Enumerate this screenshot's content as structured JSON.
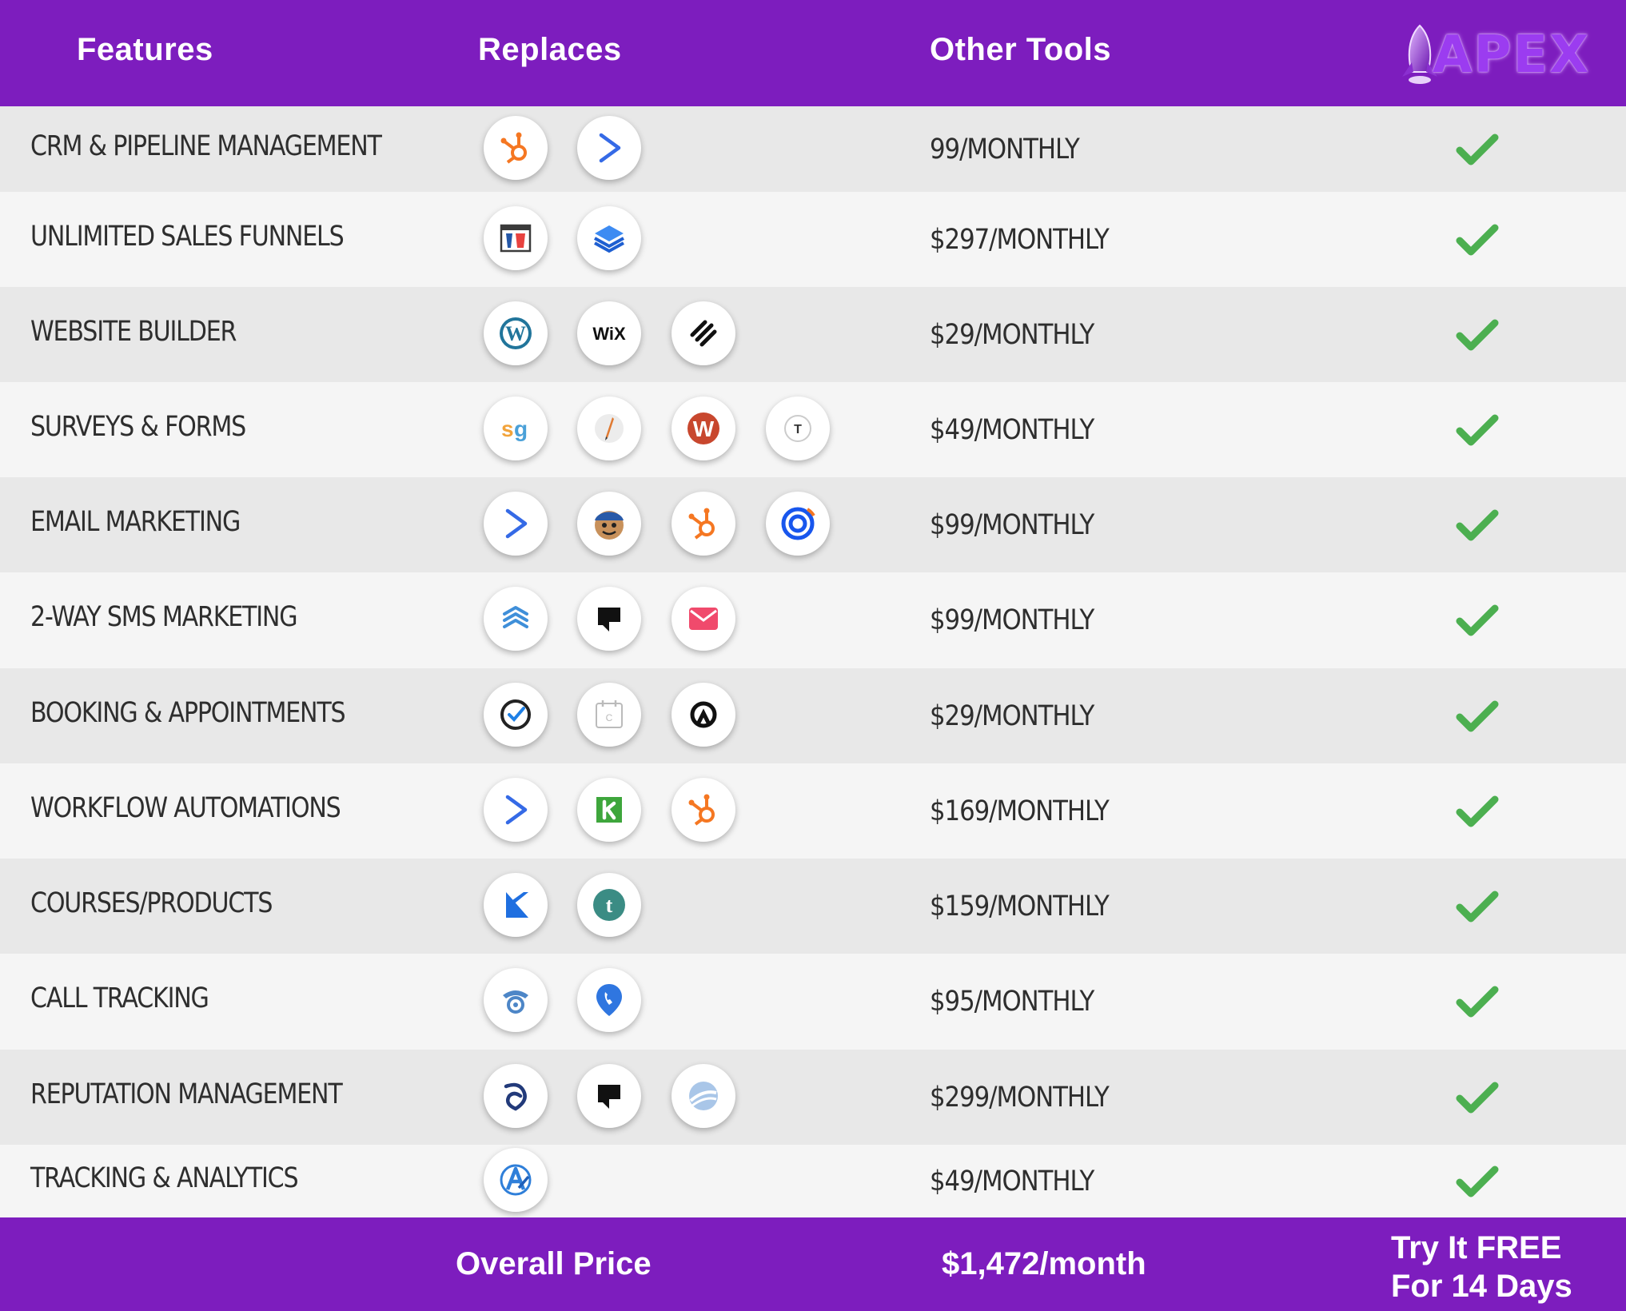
{
  "header": {
    "features_label": "Features",
    "replaces_label": "Replaces",
    "other_tools_label": "Other Tools",
    "logo_text": "APEX"
  },
  "rows": [
    {
      "feature": "CRM & PIPELINE MANAGEMENT",
      "price": "99/MONTHLY",
      "icons": [
        "hubspot-icon",
        "activecampaign-icon"
      ],
      "included": true
    },
    {
      "feature": "UNLIMITED SALES FUNNELS",
      "price": "$297/MONTHLY",
      "icons": [
        "clickfunnels-icon",
        "leadpages-icon"
      ],
      "included": true
    },
    {
      "feature": "WEBSITE BUILDER",
      "price": "$29/MONTHLY",
      "icons": [
        "wordpress-icon",
        "wix-icon",
        "squarespace-icon"
      ],
      "included": true
    },
    {
      "feature": "SURVEYS & FORMS",
      "price": "$49/MONTHLY",
      "icons": [
        "surveygizmo-icon",
        "pen-icon",
        "wufoo-icon",
        "typeform-icon"
      ],
      "included": true
    },
    {
      "feature": "EMAIL MARKETING",
      "price": "$99/MONTHLY",
      "icons": [
        "activecampaign-icon",
        "mailchimp-icon",
        "hubspot-icon",
        "constantcontact-icon"
      ],
      "included": true
    },
    {
      "feature": "2-WAY SMS MARKETING",
      "price": "$99/MONTHLY",
      "icons": [
        "stacks-icon",
        "podium-icon",
        "envelope-icon"
      ],
      "included": true
    },
    {
      "feature": "BOOKING & APPOINTMENTS",
      "price": "$29/MONTHLY",
      "icons": [
        "check-circle-icon",
        "calendar-icon",
        "acuity-icon"
      ],
      "included": true
    },
    {
      "feature": "WORKFLOW AUTOMATIONS",
      "price": "$169/MONTHLY",
      "icons": [
        "activecampaign-icon",
        "keap-icon",
        "hubspot-icon"
      ],
      "included": true
    },
    {
      "feature": "COURSES/PRODUCTS",
      "price": "$159/MONTHLY",
      "icons": [
        "kajabi-icon",
        "teachable-icon"
      ],
      "included": true
    },
    {
      "feature": "CALL TRACKING",
      "price": "$95/MONTHLY",
      "icons": [
        "phone-icon",
        "map-pin-phone-icon"
      ],
      "included": true
    },
    {
      "feature": "REPUTATION MANAGEMENT",
      "price": "$299/MONTHLY",
      "icons": [
        "birdeye-icon",
        "podium-icon",
        "swirl-icon"
      ],
      "included": true
    },
    {
      "feature": "TRACKING & ANALYTICS",
      "price": "$49/MONTHLY",
      "icons": [
        "analytics-icon"
      ],
      "included": true
    }
  ],
  "footer": {
    "overall_label": "Overall Price",
    "overall_total": "$1,472/month",
    "cta_line1": "Try It FREE",
    "cta_line2": "For 14 Days"
  },
  "colors": {
    "brand_purple": "#7d1dbe",
    "check_green": "#4caf50",
    "row_shade": "#e8e8e8",
    "row_light": "#f5f5f5"
  }
}
